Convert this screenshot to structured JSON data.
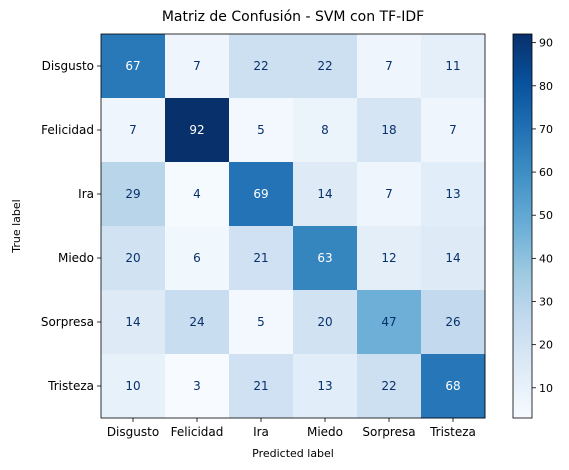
{
  "chart_data": {
    "type": "heatmap",
    "title": "Matriz de Confusión - SVM con TF-IDF",
    "xlabel": "Predicted label",
    "ylabel": "True label",
    "x_categories": [
      "Disgusto",
      "Felicidad",
      "Ira",
      "Miedo",
      "Sorpresa",
      "Tristeza"
    ],
    "y_categories": [
      "Disgusto",
      "Felicidad",
      "Ira",
      "Miedo",
      "Sorpresa",
      "Tristeza"
    ],
    "values": [
      [
        67,
        7,
        22,
        22,
        7,
        11
      ],
      [
        7,
        92,
        5,
        8,
        18,
        7
      ],
      [
        29,
        4,
        69,
        14,
        7,
        13
      ],
      [
        20,
        6,
        21,
        63,
        12,
        14
      ],
      [
        14,
        24,
        5,
        20,
        47,
        26
      ],
      [
        10,
        3,
        21,
        13,
        22,
        68
      ]
    ],
    "colormap": "Blues",
    "color_range": [
      3,
      92
    ],
    "colorbar_ticks": [
      10,
      20,
      30,
      40,
      50,
      60,
      70,
      80,
      90
    ],
    "grid": false,
    "legend": "colorbar-right"
  }
}
